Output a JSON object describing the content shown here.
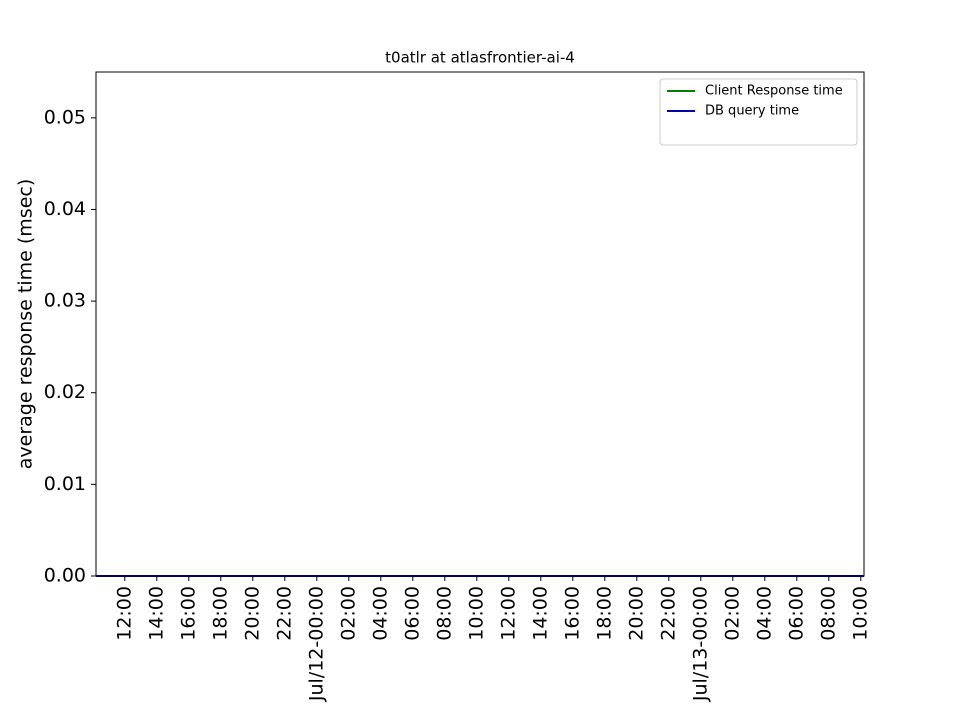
{
  "chart_data": {
    "type": "line",
    "title": "t0atlr at atlasfrontier-ai-4",
    "y_label": "average response time (msec)",
    "x": [
      10.2,
      58.2
    ],
    "series": [
      {
        "name": "Client Response time",
        "color": "#008000",
        "values": [
          0,
          0
        ]
      },
      {
        "name": "DB query time",
        "color": "#0000b0",
        "values": [
          0,
          0
        ]
      }
    ],
    "xlim": [
      10.2,
      58.2
    ],
    "xticks": [
      {
        "value": 12,
        "label": "12:00"
      },
      {
        "value": 14,
        "label": "14:00"
      },
      {
        "value": 16,
        "label": "16:00"
      },
      {
        "value": 18,
        "label": "18:00"
      },
      {
        "value": 20,
        "label": "20:00"
      },
      {
        "value": 22,
        "label": "22:00"
      },
      {
        "value": 24,
        "label": "Jul/12-00:00"
      },
      {
        "value": 26,
        "label": "02:00"
      },
      {
        "value": 28,
        "label": "04:00"
      },
      {
        "value": 30,
        "label": "06:00"
      },
      {
        "value": 32,
        "label": "08:00"
      },
      {
        "value": 34,
        "label": "10:00"
      },
      {
        "value": 36,
        "label": "12:00"
      },
      {
        "value": 38,
        "label": "14:00"
      },
      {
        "value": 40,
        "label": "16:00"
      },
      {
        "value": 42,
        "label": "18:00"
      },
      {
        "value": 44,
        "label": "20:00"
      },
      {
        "value": 46,
        "label": "22:00"
      },
      {
        "value": 48,
        "label": "Jul/13-00:00"
      },
      {
        "value": 50,
        "label": "02:00"
      },
      {
        "value": 52,
        "label": "04:00"
      },
      {
        "value": 54,
        "label": "06:00"
      },
      {
        "value": 56,
        "label": "08:00"
      },
      {
        "value": 58,
        "label": "10:00"
      }
    ],
    "ylim": [
      0,
      0.055
    ],
    "yticks": [
      {
        "value": 0,
        "label": "0.00"
      },
      {
        "value": 0.01,
        "label": "0.01"
      },
      {
        "value": 0.02,
        "label": "0.02"
      },
      {
        "value": 0.03,
        "label": "0.03"
      },
      {
        "value": 0.04,
        "label": "0.04"
      },
      {
        "value": 0.05,
        "label": "0.05"
      }
    ],
    "legend": "upper right"
  }
}
